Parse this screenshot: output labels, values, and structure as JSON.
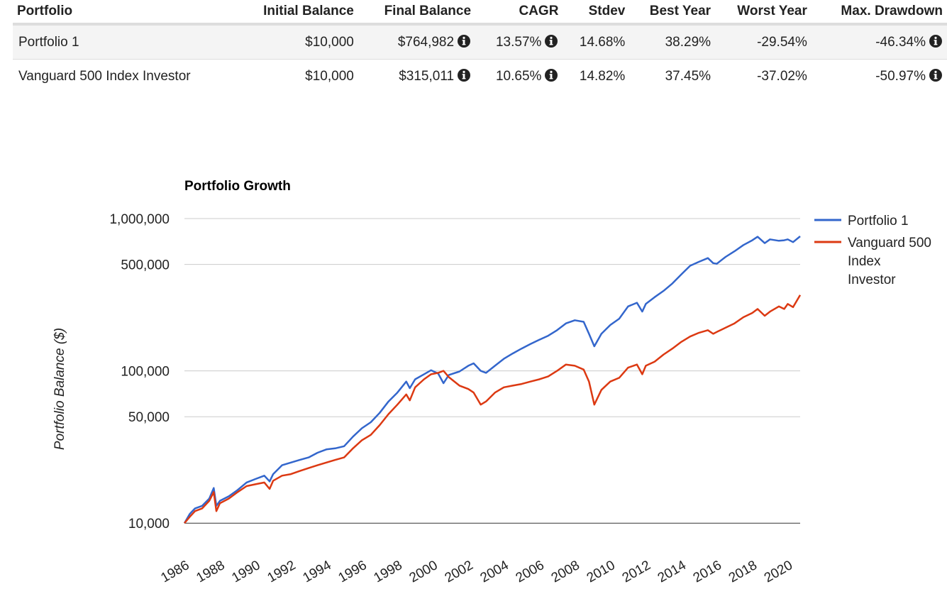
{
  "table": {
    "headers": [
      "Portfolio",
      "Initial Balance",
      "Final Balance",
      "CAGR",
      "Stdev",
      "Best Year",
      "Worst Year",
      "Max. Drawdown"
    ],
    "rows": [
      {
        "name": "Portfolio 1",
        "initial": "$10,000",
        "final": "$764,982",
        "cagr": "13.57%",
        "stdev": "14.68%",
        "best": "38.29%",
        "worst": "-29.54%",
        "drawdown": "-46.34%"
      },
      {
        "name": "Vanguard 500 Index Investor",
        "initial": "$10,000",
        "final": "$315,011",
        "cagr": "10.65%",
        "stdev": "14.82%",
        "best": "37.45%",
        "worst": "-37.02%",
        "drawdown": "-50.97%"
      }
    ],
    "info_icon": "info-circle-icon"
  },
  "chart_data": {
    "type": "line",
    "title": "Portfolio Growth",
    "ylabel": "Portfolio Balance ($)",
    "xlabel": "",
    "yscale": "log",
    "ylim": [
      8000,
      1000000
    ],
    "xlim": [
      1986,
      2020.7
    ],
    "yticks": [
      10000,
      50000,
      100000,
      500000,
      1000000
    ],
    "ytick_labels": [
      "10,000",
      "50,000",
      "100,000",
      "500,000",
      "1,000,000"
    ],
    "xticks": [
      1986,
      1988,
      1990,
      1992,
      1994,
      1996,
      1998,
      2000,
      2002,
      2004,
      2006,
      2008,
      2010,
      2012,
      2014,
      2016,
      2018,
      2020
    ],
    "xtick_labels": [
      "1986",
      "1988",
      "1990",
      "1992",
      "1994",
      "1996",
      "1998",
      "2000",
      "2002",
      "2004",
      "2006",
      "2008",
      "2010",
      "2012",
      "2014",
      "2016",
      "2018",
      "2020"
    ],
    "grid": true,
    "legend_position": "right",
    "series": [
      {
        "name": "Portfolio 1",
        "color": "#3366cc",
        "points": [
          [
            1986.0,
            10000
          ],
          [
            1986.3,
            11500
          ],
          [
            1986.6,
            12500
          ],
          [
            1987.0,
            13000
          ],
          [
            1987.4,
            14500
          ],
          [
            1987.65,
            17000
          ],
          [
            1987.8,
            13000
          ],
          [
            1988.0,
            14000
          ],
          [
            1988.5,
            15000
          ],
          [
            1989.0,
            16500
          ],
          [
            1989.5,
            18500
          ],
          [
            1990.0,
            19500
          ],
          [
            1990.5,
            20500
          ],
          [
            1990.8,
            18800
          ],
          [
            1991.0,
            21000
          ],
          [
            1991.5,
            24000
          ],
          [
            1992.0,
            25000
          ],
          [
            1992.5,
            26000
          ],
          [
            1993.0,
            27000
          ],
          [
            1993.5,
            29000
          ],
          [
            1994.0,
            30500
          ],
          [
            1994.5,
            31000
          ],
          [
            1995.0,
            32000
          ],
          [
            1995.5,
            37000
          ],
          [
            1996.0,
            42000
          ],
          [
            1996.5,
            46000
          ],
          [
            1997.0,
            53000
          ],
          [
            1997.5,
            63000
          ],
          [
            1998.0,
            72000
          ],
          [
            1998.5,
            85000
          ],
          [
            1998.7,
            77000
          ],
          [
            1999.0,
            88000
          ],
          [
            1999.5,
            95000
          ],
          [
            1999.9,
            101000
          ],
          [
            2000.3,
            96000
          ],
          [
            2000.6,
            83000
          ],
          [
            2000.9,
            94000
          ],
          [
            2001.5,
            99000
          ],
          [
            2002.0,
            108000
          ],
          [
            2002.3,
            112000
          ],
          [
            2002.7,
            100000
          ],
          [
            2003.0,
            97000
          ],
          [
            2003.5,
            108000
          ],
          [
            2004.0,
            120000
          ],
          [
            2004.5,
            130000
          ],
          [
            2005.0,
            140000
          ],
          [
            2005.5,
            150000
          ],
          [
            2006.0,
            160000
          ],
          [
            2006.5,
            170000
          ],
          [
            2007.0,
            185000
          ],
          [
            2007.5,
            205000
          ],
          [
            2008.0,
            215000
          ],
          [
            2008.5,
            210000
          ],
          [
            2008.8,
            175000
          ],
          [
            2009.1,
            145000
          ],
          [
            2009.5,
            175000
          ],
          [
            2010.0,
            200000
          ],
          [
            2010.5,
            220000
          ],
          [
            2011.0,
            265000
          ],
          [
            2011.5,
            280000
          ],
          [
            2011.8,
            245000
          ],
          [
            2012.0,
            275000
          ],
          [
            2012.5,
            305000
          ],
          [
            2013.0,
            335000
          ],
          [
            2013.5,
            375000
          ],
          [
            2014.0,
            430000
          ],
          [
            2014.5,
            490000
          ],
          [
            2015.0,
            520000
          ],
          [
            2015.5,
            550000
          ],
          [
            2015.8,
            510000
          ],
          [
            2016.0,
            505000
          ],
          [
            2016.5,
            560000
          ],
          [
            2017.0,
            610000
          ],
          [
            2017.5,
            670000
          ],
          [
            2018.0,
            720000
          ],
          [
            2018.3,
            760000
          ],
          [
            2018.7,
            690000
          ],
          [
            2019.0,
            730000
          ],
          [
            2019.5,
            715000
          ],
          [
            2019.8,
            720000
          ],
          [
            2020.0,
            730000
          ],
          [
            2020.3,
            700000
          ],
          [
            2020.7,
            765000
          ]
        ]
      },
      {
        "name": "Vanguard 500 Index Investor",
        "color": "#dc3912",
        "points": [
          [
            1986.0,
            10000
          ],
          [
            1986.3,
            11000
          ],
          [
            1986.6,
            12000
          ],
          [
            1987.0,
            12500
          ],
          [
            1987.4,
            14000
          ],
          [
            1987.65,
            16000
          ],
          [
            1987.8,
            12000
          ],
          [
            1988.0,
            13500
          ],
          [
            1988.5,
            14500
          ],
          [
            1989.0,
            16000
          ],
          [
            1989.5,
            17500
          ],
          [
            1990.0,
            18000
          ],
          [
            1990.5,
            18500
          ],
          [
            1990.8,
            16800
          ],
          [
            1991.0,
            19000
          ],
          [
            1991.5,
            20500
          ],
          [
            1992.0,
            21000
          ],
          [
            1992.5,
            22000
          ],
          [
            1993.0,
            23000
          ],
          [
            1993.5,
            24000
          ],
          [
            1994.0,
            25000
          ],
          [
            1994.5,
            26000
          ],
          [
            1995.0,
            27000
          ],
          [
            1995.5,
            31000
          ],
          [
            1996.0,
            35000
          ],
          [
            1996.5,
            38000
          ],
          [
            1997.0,
            44000
          ],
          [
            1997.5,
            52000
          ],
          [
            1998.0,
            60000
          ],
          [
            1998.5,
            70000
          ],
          [
            1998.7,
            64000
          ],
          [
            1999.0,
            78000
          ],
          [
            1999.5,
            88000
          ],
          [
            1999.9,
            95000
          ],
          [
            2000.3,
            97000
          ],
          [
            2000.6,
            100000
          ],
          [
            2000.9,
            91000
          ],
          [
            2001.5,
            80000
          ],
          [
            2002.0,
            76000
          ],
          [
            2002.3,
            72000
          ],
          [
            2002.7,
            60000
          ],
          [
            2003.0,
            63000
          ],
          [
            2003.5,
            72000
          ],
          [
            2004.0,
            78000
          ],
          [
            2004.5,
            80000
          ],
          [
            2005.0,
            82000
          ],
          [
            2005.5,
            85000
          ],
          [
            2006.0,
            88000
          ],
          [
            2006.5,
            92000
          ],
          [
            2007.0,
            100000
          ],
          [
            2007.5,
            110000
          ],
          [
            2008.0,
            108000
          ],
          [
            2008.5,
            102000
          ],
          [
            2008.8,
            85000
          ],
          [
            2009.1,
            60000
          ],
          [
            2009.5,
            75000
          ],
          [
            2010.0,
            85000
          ],
          [
            2010.5,
            90000
          ],
          [
            2011.0,
            105000
          ],
          [
            2011.5,
            110000
          ],
          [
            2011.8,
            95000
          ],
          [
            2012.0,
            108000
          ],
          [
            2012.5,
            115000
          ],
          [
            2013.0,
            128000
          ],
          [
            2013.5,
            140000
          ],
          [
            2014.0,
            155000
          ],
          [
            2014.5,
            168000
          ],
          [
            2015.0,
            178000
          ],
          [
            2015.5,
            185000
          ],
          [
            2015.8,
            175000
          ],
          [
            2016.0,
            180000
          ],
          [
            2016.5,
            192000
          ],
          [
            2017.0,
            205000
          ],
          [
            2017.5,
            225000
          ],
          [
            2018.0,
            240000
          ],
          [
            2018.3,
            255000
          ],
          [
            2018.7,
            230000
          ],
          [
            2019.0,
            245000
          ],
          [
            2019.5,
            265000
          ],
          [
            2019.8,
            255000
          ],
          [
            2020.0,
            275000
          ],
          [
            2020.3,
            262000
          ],
          [
            2020.7,
            315000
          ]
        ]
      }
    ]
  }
}
